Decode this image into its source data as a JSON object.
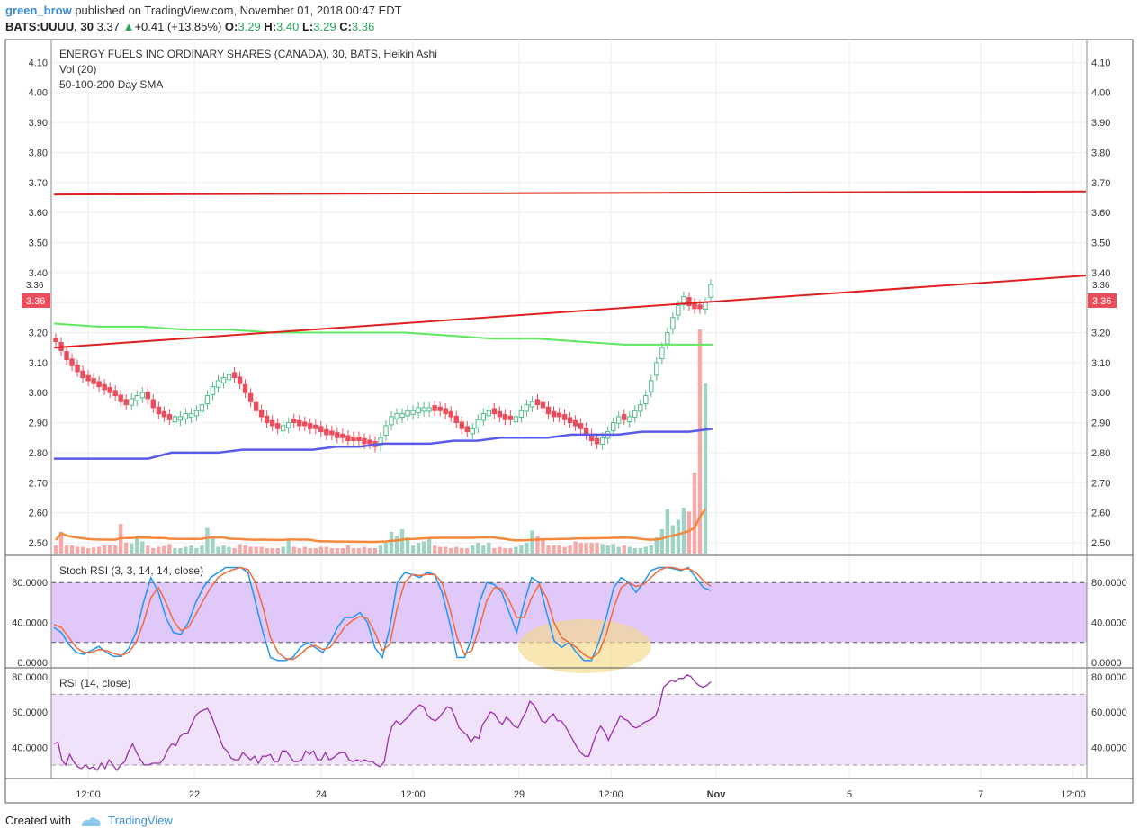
{
  "header": {
    "user": "green_brow",
    "published_text": "published on TradingView.com, November 01, 2018 00:47 EDT",
    "symbol_line": "BATS:UUUU, 30",
    "last": "3.37",
    "change": "+0.41 (+13.85%)",
    "o_label": "O:",
    "o": "3.29",
    "h_label": "H:",
    "h": "3.40",
    "l_label": "L:",
    "l": "3.29",
    "c_label": "C:",
    "c": "3.36"
  },
  "legend": {
    "line1": "ENERGY FUELS INC ORDINARY SHARES (CANADA), 30, BATS, Heikin Ashi",
    "line2": "Vol (20)",
    "line3": "50-100-200 Day SMA",
    "stoch": "Stoch RSI (3, 3, 14, 14, close)",
    "rsi": "RSI (14, close)"
  },
  "price_badge": "3.36",
  "price_marker": "3.36",
  "footer": {
    "created": "Created with",
    "brand": "TradingView"
  },
  "colors": {
    "bull": "#53b987",
    "bear": "#eb4d5c",
    "trend": "#e02020",
    "sma50": "#5a5ae8",
    "sma100": "#5ee85e",
    "volma": "#f5883a",
    "stoch_k": "#2196f3",
    "stoch_d": "#ef6c3a",
    "rsi": "#9b2fae",
    "band_stoch": "#e0c8fb",
    "band_rsi": "#f1e2fb",
    "highlight": "#f5d98b"
  },
  "chart_data": [
    {
      "type": "candlestick",
      "name": "ENERGY FUELS INC ORDINARY SHARES (CANADA), 30, BATS, Heikin Ashi",
      "y_ticks": [
        "4.10",
        "4.00",
        "3.90",
        "3.80",
        "3.70",
        "3.60",
        "3.50",
        "3.40",
        "3.30",
        "3.20",
        "3.10",
        "3.00",
        "2.90",
        "2.80",
        "2.70",
        "2.60",
        "2.50"
      ],
      "ylim": [
        2.47,
        4.15
      ],
      "x_ticks": [
        "12:00",
        "22",
        "24",
        "12:00",
        "29",
        "12:00",
        "Nov",
        "5",
        "7",
        "12:00"
      ],
      "closes": [
        3.17,
        3.14,
        3.11,
        3.09,
        3.07,
        3.05,
        3.04,
        3.03,
        3.02,
        3.01,
        3.0,
        2.99,
        2.97,
        2.96,
        2.98,
        2.99,
        3.0,
        2.98,
        2.95,
        2.93,
        2.92,
        2.91,
        2.92,
        2.92,
        2.93,
        2.93,
        2.94,
        2.96,
        2.99,
        3.02,
        3.04,
        3.05,
        3.06,
        3.05,
        3.03,
        3.0,
        2.97,
        2.94,
        2.92,
        2.9,
        2.89,
        2.88,
        2.89,
        2.9,
        2.9,
        2.89,
        2.89,
        2.88,
        2.88,
        2.87,
        2.86,
        2.86,
        2.85,
        2.85,
        2.84,
        2.84,
        2.84,
        2.83,
        2.83,
        2.82,
        2.85,
        2.89,
        2.92,
        2.93,
        2.93,
        2.94,
        2.94,
        2.95,
        2.95,
        2.95,
        2.94,
        2.94,
        2.93,
        2.92,
        2.9,
        2.88,
        2.87,
        2.88,
        2.91,
        2.93,
        2.94,
        2.93,
        2.92,
        2.91,
        2.91,
        2.92,
        2.94,
        2.96,
        2.97,
        2.96,
        2.95,
        2.93,
        2.92,
        2.92,
        2.91,
        2.9,
        2.89,
        2.88,
        2.86,
        2.84,
        2.83,
        2.85,
        2.87,
        2.9,
        2.92,
        2.91,
        2.92,
        2.94,
        2.96,
        2.99,
        3.04,
        3.1,
        3.15,
        3.2,
        3.25,
        3.29,
        3.32,
        3.29,
        3.28,
        3.28,
        3.3,
        3.36
      ],
      "vol_ylim": [
        0,
        2000
      ],
      "volumes": [
        60,
        160,
        60,
        60,
        50,
        50,
        40,
        45,
        50,
        60,
        60,
        60,
        220,
        80,
        75,
        130,
        90,
        60,
        40,
        50,
        55,
        70,
        40,
        40,
        50,
        60,
        40,
        60,
        190,
        130,
        50,
        60,
        50,
        40,
        70,
        60,
        50,
        50,
        50,
        40,
        40,
        40,
        50,
        100,
        50,
        40,
        50,
        40,
        40,
        50,
        50,
        40,
        40,
        40,
        60,
        40,
        40,
        50,
        40,
        40,
        60,
        80,
        160,
        130,
        180,
        120,
        60,
        80,
        90,
        110,
        60,
        50,
        50,
        40,
        50,
        40,
        40,
        60,
        80,
        60,
        80,
        40,
        50,
        40,
        40,
        50,
        60,
        80,
        170,
        130,
        110,
        60,
        60,
        60,
        50,
        60,
        90,
        80,
        80,
        80,
        80,
        70,
        60,
        70,
        50,
        60,
        50,
        40,
        40,
        50,
        60,
        120,
        180,
        330,
        210,
        250,
        340,
        310,
        600,
        1660,
        1260
      ],
      "bullish": [
        false,
        false,
        false,
        false,
        false,
        false,
        false,
        false,
        false,
        false,
        false,
        false,
        false,
        false,
        true,
        true,
        true,
        false,
        false,
        false,
        false,
        false,
        true,
        true,
        true,
        true,
        true,
        true,
        true,
        true,
        true,
        true,
        true,
        false,
        false,
        false,
        false,
        false,
        false,
        false,
        false,
        false,
        true,
        true,
        false,
        false,
        false,
        false,
        false,
        false,
        false,
        false,
        false,
        false,
        false,
        false,
        false,
        false,
        false,
        false,
        true,
        true,
        true,
        true,
        true,
        true,
        true,
        true,
        true,
        true,
        false,
        false,
        false,
        false,
        false,
        false,
        false,
        true,
        true,
        true,
        true,
        false,
        false,
        false,
        false,
        true,
        true,
        true,
        true,
        false,
        false,
        false,
        false,
        false,
        false,
        false,
        false,
        false,
        false,
        false,
        false,
        true,
        true,
        true,
        true,
        false,
        true,
        true,
        true,
        true,
        true,
        true,
        true,
        true,
        true,
        true,
        true,
        false,
        false,
        false,
        true,
        true
      ],
      "sma50": [
        2.78,
        2.78,
        2.78,
        2.78,
        2.78,
        2.8,
        2.8,
        2.8,
        2.81,
        2.81,
        2.81,
        2.81,
        2.82,
        2.82,
        2.83,
        2.83,
        2.83,
        2.84,
        2.84,
        2.85,
        2.85,
        2.85,
        2.86,
        2.86,
        2.86,
        2.87,
        2.87,
        2.87,
        2.88
      ],
      "sma100": [
        3.23,
        3.22,
        3.22,
        3.21,
        3.21,
        3.2,
        3.2,
        3.2,
        3.2,
        3.19,
        3.18,
        3.18,
        3.17,
        3.16,
        3.16,
        3.16
      ],
      "trendlines": [
        {
          "from_value": 3.66,
          "to_value": 3.67
        },
        {
          "from_value": 3.15,
          "to_value": 3.39
        }
      ]
    },
    {
      "type": "line",
      "name": "Stoch RSI (3, 3, 14, 14, close)",
      "y_ticks": [
        "80.0000",
        "40.0000",
        "0.0000"
      ],
      "ylim": [
        0,
        100
      ],
      "band": [
        20,
        80
      ],
      "series": [
        {
          "name": "K",
          "values": [
            35,
            30,
            18,
            10,
            8,
            12,
            16,
            10,
            6,
            6,
            14,
            30,
            60,
            85,
            70,
            45,
            30,
            28,
            40,
            60,
            75,
            85,
            90,
            95,
            95,
            95,
            90,
            60,
            30,
            5,
            2,
            2,
            5,
            15,
            20,
            15,
            10,
            20,
            35,
            45,
            45,
            50,
            40,
            15,
            5,
            35,
            80,
            90,
            88,
            85,
            90,
            88,
            70,
            40,
            5,
            5,
            25,
            60,
            80,
            78,
            70,
            50,
            30,
            60,
            85,
            80,
            50,
            22,
            15,
            20,
            10,
            2,
            2,
            20,
            45,
            75,
            85,
            80,
            70,
            80,
            92,
            95,
            95,
            94,
            92,
            95,
            85,
            75,
            72
          ]
        },
        {
          "name": "D",
          "values": [
            38,
            35,
            25,
            15,
            10,
            10,
            13,
            12,
            9,
            7,
            10,
            20,
            40,
            65,
            75,
            60,
            42,
            32,
            35,
            48,
            62,
            75,
            85,
            90,
            93,
            95,
            93,
            80,
            55,
            25,
            10,
            4,
            3,
            8,
            15,
            17,
            13,
            15,
            25,
            36,
            42,
            46,
            44,
            30,
            12,
            18,
            55,
            80,
            88,
            87,
            88,
            88,
            80,
            55,
            25,
            8,
            12,
            35,
            62,
            75,
            74,
            62,
            45,
            45,
            65,
            78,
            65,
            40,
            25,
            20,
            15,
            8,
            4,
            10,
            28,
            55,
            75,
            80,
            76,
            78,
            85,
            92,
            95,
            95,
            93,
            94,
            90,
            82,
            76
          ]
        }
      ]
    },
    {
      "type": "line",
      "name": "RSI (14, close)",
      "y_ticks": [
        "80.0000",
        "60.0000",
        "40.0000"
      ],
      "ylim": [
        22,
        84
      ],
      "band": [
        30,
        70
      ],
      "series": [
        {
          "name": "RSI",
          "values": [
            42,
            43,
            33,
            30,
            36,
            32,
            29,
            28,
            30,
            28,
            29,
            27,
            31,
            28,
            33,
            30,
            27,
            30,
            32,
            38,
            42,
            37,
            33,
            30,
            30,
            31,
            31,
            31,
            34,
            39,
            42,
            41,
            46,
            48,
            48,
            53,
            58,
            60,
            61,
            62,
            58,
            52,
            46,
            40,
            38,
            34,
            33,
            33,
            37,
            35,
            33,
            35,
            31,
            35,
            35,
            36,
            32,
            32,
            38,
            38,
            35,
            32,
            32,
            33,
            38,
            36,
            38,
            33,
            33,
            37,
            33,
            34,
            36,
            37,
            37,
            33,
            32,
            33,
            32,
            33,
            32,
            32,
            30,
            29,
            32,
            45,
            52,
            55,
            53,
            55,
            57,
            60,
            62,
            64,
            63,
            58,
            56,
            55,
            57,
            60,
            63,
            62,
            57,
            51,
            49,
            47,
            43,
            46,
            45,
            53,
            56,
            60,
            59,
            55,
            53,
            57,
            55,
            52,
            51,
            56,
            60,
            66,
            64,
            60,
            55,
            54,
            57,
            59,
            55,
            55,
            52,
            48,
            44,
            40,
            37,
            35,
            35,
            42,
            48,
            52,
            49,
            44,
            49,
            53,
            58,
            56,
            55,
            52,
            51,
            52,
            54,
            55,
            56,
            58,
            64,
            74,
            76,
            78,
            77,
            79,
            79,
            81,
            80,
            77,
            75,
            74,
            75,
            77
          ]
        }
      ]
    }
  ]
}
